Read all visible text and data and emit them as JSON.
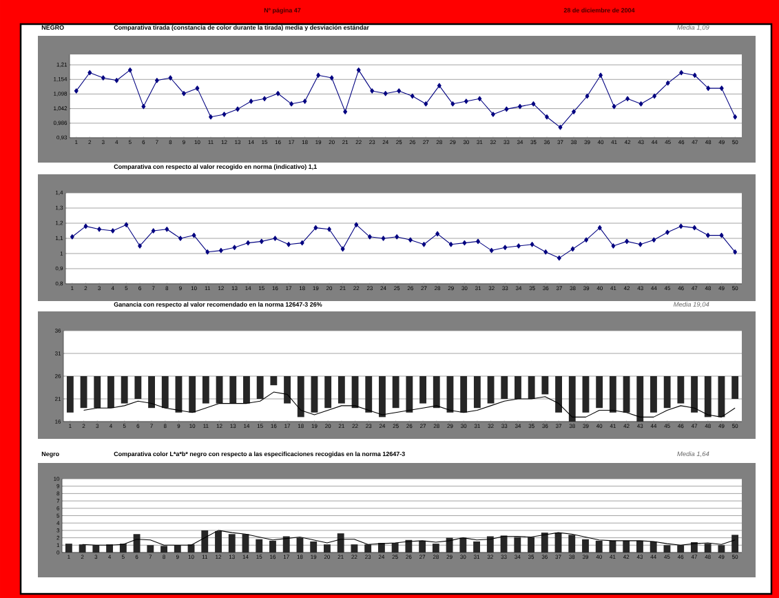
{
  "chart_data": [
    {
      "type": "line",
      "title": "Comparativa tirada (constancia de color durante la tirada)  media y desviación estándar",
      "annotations": [
        "NEGRO",
        "Media  1,09",
        "Nº página 47",
        "28 de diciembre de 2004"
      ],
      "categories": [
        "1",
        "2",
        "3",
        "4",
        "5",
        "6",
        "7",
        "8",
        "9",
        "10",
        "11",
        "12",
        "13",
        "14",
        "15",
        "16",
        "17",
        "18",
        "19",
        "20",
        "21",
        "22",
        "23",
        "24",
        "25",
        "26",
        "27",
        "28",
        "29",
        "30",
        "31",
        "32",
        "33",
        "34",
        "35",
        "36",
        "37",
        "38",
        "39",
        "40",
        "41",
        "42",
        "43",
        "44",
        "45",
        "46",
        "47",
        "48",
        "49",
        "50"
      ],
      "values": [
        1.11,
        1.18,
        1.16,
        1.15,
        1.19,
        1.05,
        1.15,
        1.16,
        1.1,
        1.12,
        1.01,
        1.02,
        1.04,
        1.07,
        1.08,
        1.1,
        1.06,
        1.07,
        1.17,
        1.16,
        1.03,
        1.19,
        1.11,
        1.1,
        1.11,
        1.09,
        1.06,
        1.13,
        1.06,
        1.07,
        1.08,
        1.02,
        1.04,
        1.05,
        1.06,
        1.01,
        0.97,
        1.03,
        1.09,
        1.17,
        1.05,
        1.08,
        1.06,
        1.09,
        1.14,
        1.18,
        1.17,
        1.12,
        1.12,
        1.01
      ],
      "color": "#000080",
      "marker": "diamond",
      "grid": "y",
      "ylim": [
        0.93,
        1.25
      ],
      "yticks": [
        {
          "value": 0.93,
          "label": "0,93"
        },
        {
          "value": 0.986,
          "label": "0,986"
        },
        {
          "value": 1.042,
          "label": "1,042"
        },
        {
          "value": 1.098,
          "label": "1,098"
        },
        {
          "value": 1.154,
          "label": "1,154"
        },
        {
          "value": 1.21,
          "label": "1,21"
        }
      ]
    },
    {
      "type": "line",
      "title": "Comparativa con respecto al valor recogido en norma (indicativo)  1,1",
      "categories": [
        "1",
        "2",
        "3",
        "4",
        "5",
        "6",
        "7",
        "8",
        "9",
        "10",
        "11",
        "12",
        "13",
        "14",
        "15",
        "16",
        "17",
        "18",
        "19",
        "20",
        "21",
        "22",
        "23",
        "24",
        "25",
        "26",
        "27",
        "28",
        "29",
        "30",
        "31",
        "32",
        "33",
        "34",
        "35",
        "36",
        "37",
        "38",
        "39",
        "40",
        "41",
        "42",
        "43",
        "44",
        "45",
        "46",
        "47",
        "48",
        "49",
        "50"
      ],
      "values": [
        1.11,
        1.18,
        1.16,
        1.15,
        1.19,
        1.05,
        1.15,
        1.16,
        1.1,
        1.12,
        1.01,
        1.02,
        1.04,
        1.07,
        1.08,
        1.1,
        1.06,
        1.07,
        1.17,
        1.16,
        1.03,
        1.19,
        1.11,
        1.1,
        1.11,
        1.09,
        1.06,
        1.13,
        1.06,
        1.07,
        1.08,
        1.02,
        1.04,
        1.05,
        1.06,
        1.01,
        0.97,
        1.03,
        1.09,
        1.17,
        1.05,
        1.08,
        1.06,
        1.09,
        1.14,
        1.18,
        1.17,
        1.12,
        1.12,
        1.01
      ],
      "color": "#000080",
      "marker": "diamond",
      "grid": "y",
      "ylim": [
        0.8,
        1.4
      ],
      "yticks": [
        {
          "value": 0.8,
          "label": "0,8"
        },
        {
          "value": 0.9,
          "label": "0,9"
        },
        1,
        {
          "value": 1.1,
          "label": "1,1"
        },
        {
          "value": 1.2,
          "label": "1,2"
        },
        {
          "value": 1.3,
          "label": "1,3"
        },
        {
          "value": 1.4,
          "label": "1,4"
        }
      ]
    },
    {
      "type": "bar",
      "title": "Ganancia con respecto al valor recomendado en la norma 12647-3     26%",
      "annotations": [
        "Media  19,04"
      ],
      "categories": [
        "1",
        "2",
        "3",
        "4",
        "5",
        "6",
        "7",
        "8",
        "9",
        "10",
        "11",
        "12",
        "13",
        "14",
        "15",
        "16",
        "17",
        "18",
        "19",
        "20",
        "21",
        "22",
        "23",
        "24",
        "25",
        "26",
        "27",
        "28",
        "29",
        "30",
        "31",
        "32",
        "33",
        "34",
        "35",
        "36",
        "37",
        "38",
        "39",
        "40",
        "41",
        "42",
        "43",
        "44",
        "45",
        "46",
        "47",
        "48",
        "49",
        "50"
      ],
      "series": [
        {
          "type": "bar",
          "color": "#262626",
          "base": [
            26,
            26,
            26,
            26,
            26,
            26,
            26,
            26,
            26,
            26,
            26,
            26,
            26,
            26,
            26,
            26,
            26,
            26,
            26,
            26,
            26,
            26,
            26,
            26,
            26,
            26,
            26,
            26,
            26,
            26,
            26,
            26,
            26,
            26,
            26,
            26,
            26,
            26,
            26,
            26,
            26,
            26,
            26,
            26,
            26,
            26,
            26,
            26,
            26,
            26
          ],
          "values": [
            -8,
            -7,
            -7,
            -7,
            -6,
            -5,
            -7,
            -7,
            -8,
            -8,
            -6,
            -6,
            -6,
            -6,
            -5,
            -2,
            -6,
            -9,
            -8,
            -7,
            -6,
            -7,
            -8,
            -9,
            -7,
            -8,
            -6,
            -7,
            -8,
            -8,
            -7,
            -6,
            -5,
            -5,
            -5,
            -4,
            -8,
            -10,
            -8,
            -7,
            -8,
            -8,
            -10,
            -8,
            -7,
            -6,
            -8,
            -9,
            -9,
            -5
          ]
        },
        {
          "type": "line",
          "color": "#000000",
          "values": [
            null,
            18.5,
            19,
            19,
            19.5,
            20.5,
            20,
            19,
            18.5,
            18,
            19,
            20,
            20,
            20,
            20.5,
            22.5,
            22,
            18.5,
            17.5,
            18.5,
            19.5,
            19.5,
            18.5,
            17.5,
            18,
            18.5,
            19,
            19.5,
            18.5,
            18,
            18.5,
            19.5,
            20.5,
            21,
            21,
            21.5,
            20,
            17,
            17,
            18.5,
            18.5,
            18,
            17,
            17,
            18.5,
            19.5,
            19,
            17.5,
            17,
            19
          ]
        }
      ],
      "grid": "y",
      "ylim": [
        16,
        36
      ],
      "yticks": [
        16,
        21,
        26,
        31,
        36
      ]
    },
    {
      "type": "bar",
      "title": "Comparativa color L*a*b* negro con respecto a las especificaciones recogidas en la  norma  12647-3",
      "annotations": [
        "Negro",
        "Media  1,64"
      ],
      "categories": [
        "1",
        "2",
        "3",
        "4",
        "5",
        "6",
        "7",
        "8",
        "9",
        "10",
        "11",
        "12",
        "13",
        "14",
        "15",
        "16",
        "17",
        "18",
        "19",
        "20",
        "21",
        "22",
        "23",
        "24",
        "25",
        "26",
        "27",
        "28",
        "29",
        "30",
        "31",
        "32",
        "33",
        "34",
        "35",
        "36",
        "37",
        "38",
        "39",
        "40",
        "41",
        "42",
        "43",
        "44",
        "45",
        "46",
        "47",
        "48",
        "49",
        "50"
      ],
      "series": [
        {
          "type": "bar",
          "color": "#262626",
          "values": [
            1.2,
            1.1,
            1.0,
            1.1,
            1.2,
            2.5,
            1.0,
            0.9,
            1.0,
            1.1,
            3.0,
            2.9,
            2.5,
            2.5,
            1.8,
            1.6,
            2.2,
            2.0,
            1.5,
            1.1,
            2.6,
            1.1,
            1.1,
            1.3,
            1.3,
            1.7,
            1.6,
            1.2,
            2.0,
            2.0,
            1.5,
            2.2,
            2.3,
            2.1,
            2.1,
            2.7,
            2.7,
            2.4,
            1.8,
            1.6,
            1.6,
            1.6,
            1.6,
            1.5,
            1.0,
            1.0,
            1.4,
            1.2,
            1.0,
            2.4
          ]
        },
        {
          "type": "line",
          "color": "#000000",
          "values": [
            null,
            1.1,
            1.0,
            1.0,
            1.1,
            1.8,
            1.7,
            1.0,
            1.0,
            1.0,
            2.0,
            3.0,
            2.7,
            2.5,
            2.1,
            1.7,
            1.9,
            2.1,
            1.7,
            1.3,
            1.8,
            1.8,
            1.1,
            1.2,
            1.3,
            1.5,
            1.6,
            1.4,
            1.6,
            2.0,
            1.7,
            1.8,
            2.2,
            2.2,
            2.1,
            2.4,
            2.7,
            2.5,
            2.1,
            1.7,
            1.6,
            1.6,
            1.6,
            1.5,
            1.2,
            1.0,
            1.2,
            1.3,
            1.1,
            1.7
          ]
        }
      ],
      "grid": "y",
      "ylim": [
        0,
        10
      ],
      "yticks": [
        0,
        1,
        2,
        3,
        4,
        5,
        6,
        7,
        8,
        9,
        10
      ]
    }
  ]
}
